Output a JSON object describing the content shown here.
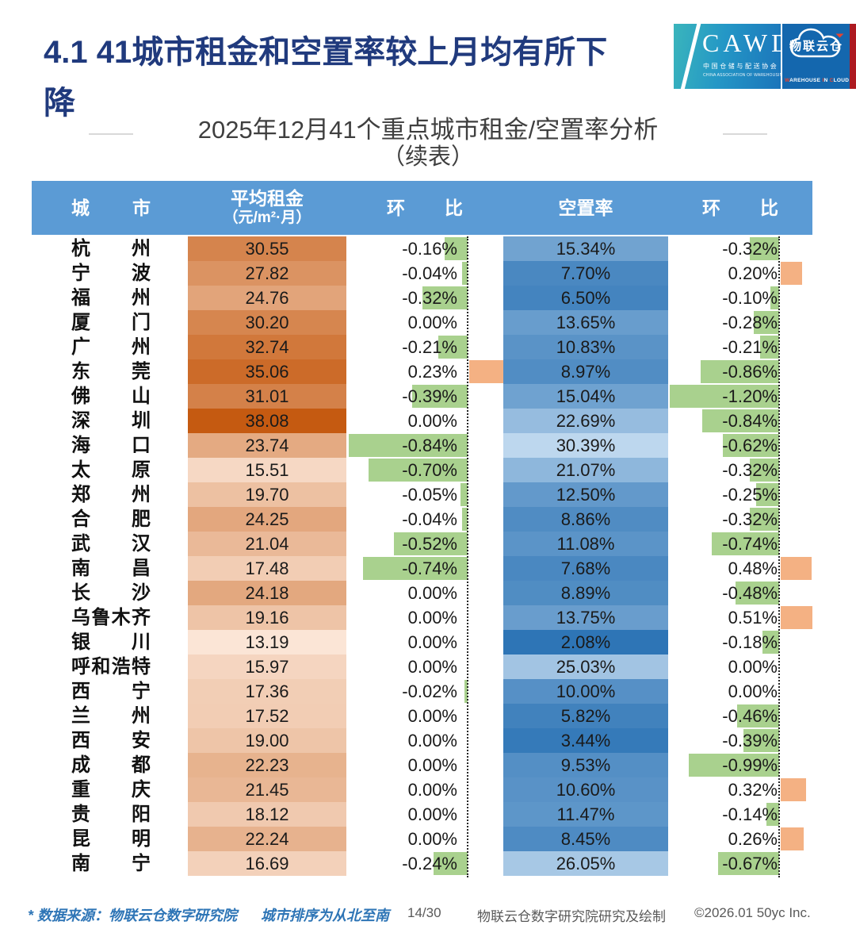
{
  "page": {
    "title": "4.1 41城市租金和空置率较上月均有所下降",
    "subtitle_line1": "2025年12月41个重点城市租金/空置率分析",
    "subtitle_line2": "（续表）"
  },
  "logo": {
    "cawd": "CAWD",
    "cawd_cn": "中国仓储与配送协会",
    "cawd_en": "CHINA ASSOCIATION OF WAREHOUSING AND DISTRIBUTION",
    "wlyc_cn": "物联云仓",
    "en_w": "W",
    "en_rest1": "AREHOUSE",
    "en_i": "I",
    "en_rest2": "N",
    "en_c": "C",
    "en_rest3": "LOUD"
  },
  "table": {
    "headers": {
      "city": "城市",
      "rent_l1": "平均租金",
      "rent_l2": "（元/m²·月）",
      "mom1": "环比",
      "vacancy": "空置率",
      "mom2": "环比"
    },
    "rows": [
      {
        "city": "杭州",
        "rent": "30.55",
        "mom1": "-0.16%",
        "vacancy": "15.34%",
        "mom2": "-0.32%"
      },
      {
        "city": "宁波",
        "rent": "27.82",
        "mom1": "-0.04%",
        "vacancy": "7.70%",
        "mom2": "0.20%"
      },
      {
        "city": "福州",
        "rent": "24.76",
        "mom1": "-0.32%",
        "vacancy": "6.50%",
        "mom2": "-0.10%"
      },
      {
        "city": "厦门",
        "rent": "30.20",
        "mom1": "0.00%",
        "vacancy": "13.65%",
        "mom2": "-0.28%"
      },
      {
        "city": "广州",
        "rent": "32.74",
        "mom1": "-0.21%",
        "vacancy": "10.83%",
        "mom2": "-0.21%"
      },
      {
        "city": "东莞",
        "rent": "35.06",
        "mom1": "0.23%",
        "vacancy": "8.97%",
        "mom2": "-0.86%"
      },
      {
        "city": "佛山",
        "rent": "31.01",
        "mom1": "-0.39%",
        "vacancy": "15.04%",
        "mom2": "-1.20%"
      },
      {
        "city": "深圳",
        "rent": "38.08",
        "mom1": "0.00%",
        "vacancy": "22.69%",
        "mom2": "-0.84%"
      },
      {
        "city": "海口",
        "rent": "23.74",
        "mom1": "-0.84%",
        "vacancy": "30.39%",
        "mom2": "-0.62%"
      },
      {
        "city": "太原",
        "rent": "15.51",
        "mom1": "-0.70%",
        "vacancy": "21.07%",
        "mom2": "-0.32%"
      },
      {
        "city": "郑州",
        "rent": "19.70",
        "mom1": "-0.05%",
        "vacancy": "12.50%",
        "mom2": "-0.25%"
      },
      {
        "city": "合肥",
        "rent": "24.25",
        "mom1": "-0.04%",
        "vacancy": "8.86%",
        "mom2": "-0.32%"
      },
      {
        "city": "武汉",
        "rent": "21.04",
        "mom1": "-0.52%",
        "vacancy": "11.08%",
        "mom2": "-0.74%"
      },
      {
        "city": "南昌",
        "rent": "17.48",
        "mom1": "-0.74%",
        "vacancy": "7.68%",
        "mom2": "0.48%"
      },
      {
        "city": "长沙",
        "rent": "24.18",
        "mom1": "0.00%",
        "vacancy": "8.89%",
        "mom2": "-0.48%"
      },
      {
        "city": "乌鲁木齐",
        "rent": "19.16",
        "mom1": "0.00%",
        "vacancy": "13.75%",
        "mom2": "0.51%"
      },
      {
        "city": "银川",
        "rent": "13.19",
        "mom1": "0.00%",
        "vacancy": "2.08%",
        "mom2": "-0.18%"
      },
      {
        "city": "呼和浩特",
        "rent": "15.97",
        "mom1": "0.00%",
        "vacancy": "25.03%",
        "mom2": "0.00%"
      },
      {
        "city": "西宁",
        "rent": "17.36",
        "mom1": "-0.02%",
        "vacancy": "10.00%",
        "mom2": "0.00%"
      },
      {
        "city": "兰州",
        "rent": "17.52",
        "mom1": "0.00%",
        "vacancy": "5.82%",
        "mom2": "-0.46%"
      },
      {
        "city": "西安",
        "rent": "19.00",
        "mom1": "0.00%",
        "vacancy": "3.44%",
        "mom2": "-0.39%"
      },
      {
        "city": "成都",
        "rent": "22.23",
        "mom1": "0.00%",
        "vacancy": "9.53%",
        "mom2": "-0.99%"
      },
      {
        "city": "重庆",
        "rent": "21.45",
        "mom1": "0.00%",
        "vacancy": "10.60%",
        "mom2": "0.32%"
      },
      {
        "city": "贵阳",
        "rent": "18.12",
        "mom1": "0.00%",
        "vacancy": "11.47%",
        "mom2": "-0.14%"
      },
      {
        "city": "昆明",
        "rent": "22.24",
        "mom1": "0.00%",
        "vacancy": "8.45%",
        "mom2": "0.26%"
      },
      {
        "city": "南宁",
        "rent": "16.69",
        "mom1": "-0.24%",
        "vacancy": "26.05%",
        "mom2": "-0.67%"
      }
    ]
  },
  "footer": {
    "note_source": "* 数据来源：物联云仓数字研究院",
    "note_order": "城市排序为从北至南",
    "page": "14/30",
    "credit": "物联云仓数字研究院研究及绘制",
    "copyright": "©2026.01 50yc Inc."
  },
  "colors": {
    "title": "#203A7D",
    "header_bg": "#5B9BD5",
    "rent_min_color": "#FBE5D6",
    "rent_max_color": "#C55A11",
    "vacancy_min_color": "#2E75B6",
    "vacancy_max_color": "#BDD7EE",
    "bar_negative": "#A9D18E",
    "bar_positive": "#F4B183",
    "note_blue": "#2E75B6",
    "footer_gray": "#595959",
    "logo_red": "#E8432F"
  }
}
